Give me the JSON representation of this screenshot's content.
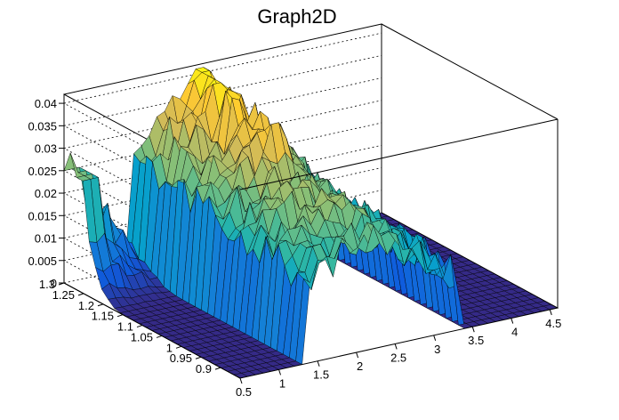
{
  "chart_data": {
    "type": "surface3d",
    "title": "Graph2D",
    "xlabel": "",
    "ylabel": "",
    "zlabel": "",
    "x_range": [
      0.5,
      4.6
    ],
    "y_range": [
      0.85,
      1.3
    ],
    "z_range": [
      0,
      0.042
    ],
    "x_ticks": [
      "0.5",
      "1",
      "1.5",
      "2",
      "2.5",
      "3",
      "3.5",
      "4",
      "4.5"
    ],
    "y_ticks": [
      "0.9",
      "0.95",
      "1",
      "1.05",
      "1.1",
      "1.15",
      "1.2",
      "1.25",
      "1.3"
    ],
    "z_ticks": [
      "0",
      "0.005",
      "0.01",
      "0.015",
      "0.02",
      "0.025",
      "0.03",
      "0.035",
      "0.04"
    ],
    "grid": true,
    "colormap": "parula",
    "colors": [
      "#352a87",
      "#0f5cdd",
      "#1481d6",
      "#06a4ca",
      "#2eb7a4",
      "#87bf77",
      "#d1bb59",
      "#fec832",
      "#f9fb0e"
    ],
    "surface_description": "Plateau of height ~0.015-0.035 for x approx 1.3-3.3 (over full y range), with a ridge near low x at high y (peak ~0.027) and near-zero elsewhere",
    "samples": [
      {
        "x": 0.6,
        "y": 1.28,
        "z": 0.027
      },
      {
        "x": 1.5,
        "y": 1.1,
        "z": 0.022
      },
      {
        "x": 2.2,
        "y": 1.2,
        "z": 0.038
      },
      {
        "x": 3.0,
        "y": 1.0,
        "z": 0.03
      },
      {
        "x": 3.3,
        "y": 0.95,
        "z": 0.027
      },
      {
        "x": 4.0,
        "y": 1.1,
        "z": 0.0
      }
    ]
  }
}
